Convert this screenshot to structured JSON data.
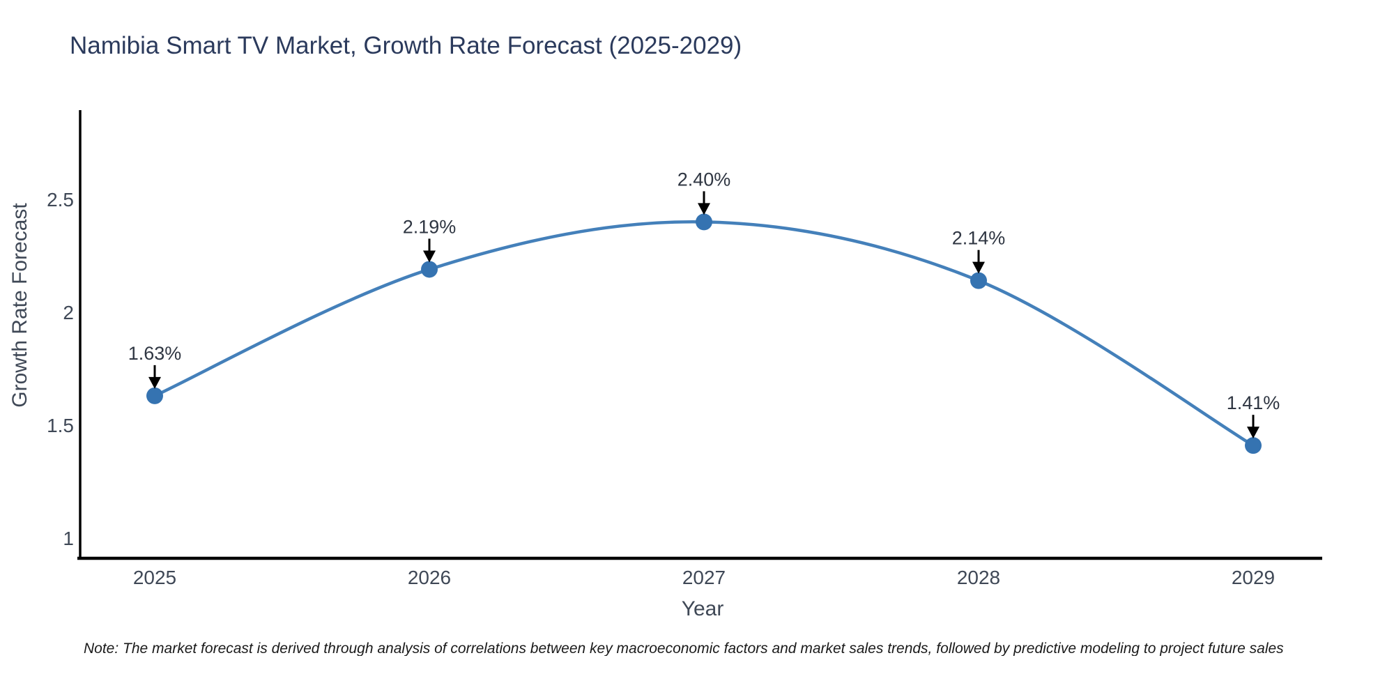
{
  "chart_data": {
    "type": "line",
    "title": "Namibia Smart TV Market, Growth Rate Forecast (2025-2029)",
    "xlabel": "Year",
    "ylabel": "Growth Rate Forecast",
    "x": [
      2025,
      2026,
      2027,
      2028,
      2029
    ],
    "values": [
      1.63,
      2.19,
      2.4,
      2.14,
      1.41
    ],
    "point_labels": [
      "1.63%",
      "2.19%",
      "2.40%",
      "2.14%",
      "1.41%"
    ],
    "xtick_labels": [
      "2025",
      "2026",
      "2027",
      "2028",
      "2029"
    ],
    "yticks": [
      1,
      1.5,
      2,
      2.5
    ],
    "ytick_labels": [
      "1",
      "1.5",
      "2",
      "2.5"
    ],
    "ylim": [
      0.92,
      2.92
    ],
    "grid": false,
    "legend": "none",
    "line_shape": "spline",
    "note": "Note: The market forecast is derived through analysis of correlations between key macroeconomic factors and market sales trends, followed by predictive modeling to project future sales",
    "colors": {
      "line": "#4480ba",
      "marker": "#3573b1",
      "arrow": "#000000",
      "title": "#2b3a5c",
      "axis_line": "#000000",
      "tick_label": "#3f4856",
      "axis_label": "#3f4856",
      "annotation": "#2f3642",
      "note": "#1a1a1a",
      "background": "#ffffff"
    }
  }
}
